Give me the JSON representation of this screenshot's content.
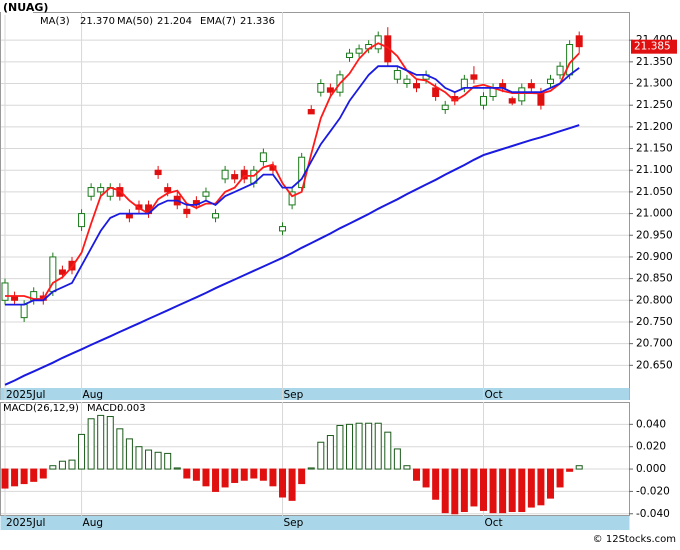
{
  "chart_data": [
    {
      "type": "candlestick",
      "title": "(NUAG)",
      "categories": [
        "2025Jul",
        null,
        null,
        null,
        null,
        null,
        null,
        null,
        "Aug",
        null,
        null,
        null,
        null,
        null,
        null,
        null,
        null,
        null,
        null,
        null,
        null,
        null,
        null,
        null,
        null,
        null,
        null,
        null,
        null,
        "Sep",
        null,
        null,
        null,
        null,
        null,
        null,
        null,
        null,
        null,
        null,
        null,
        null,
        null,
        null,
        null,
        null,
        null,
        null,
        null,
        null,
        "Oct",
        null,
        null,
        null,
        null,
        null,
        null,
        null,
        null,
        null,
        null
      ],
      "open": [
        20.8,
        20.81,
        20.76,
        20.8,
        20.81,
        20.82,
        20.87,
        20.89,
        20.97,
        21.04,
        21.05,
        21.04,
        21.06,
        21.0,
        21.02,
        21.02,
        21.1,
        21.06,
        21.04,
        21.01,
        21.03,
        21.04,
        20.99,
        21.08,
        21.09,
        21.1,
        21.07,
        21.12,
        21.11,
        20.96,
        21.02,
        21.06,
        21.24,
        21.28,
        21.29,
        21.28,
        21.36,
        21.37,
        21.38,
        21.38,
        21.41,
        21.31,
        21.3,
        21.3,
        21.31,
        21.29,
        21.24,
        21.27,
        21.29,
        21.32,
        21.25,
        21.27,
        21.3,
        21.265,
        21.26,
        21.3,
        21.28,
        21.3,
        21.32,
        21.32,
        21.41
      ],
      "high": [
        20.85,
        20.82,
        20.8,
        20.83,
        20.82,
        20.91,
        20.88,
        20.9,
        21.01,
        21.07,
        21.07,
        21.07,
        21.07,
        21.01,
        21.03,
        21.03,
        21.11,
        21.07,
        21.05,
        21.02,
        21.04,
        21.06,
        21.01,
        21.11,
        21.1,
        21.11,
        21.11,
        21.15,
        21.12,
        20.98,
        21.06,
        21.14,
        21.25,
        21.31,
        21.3,
        21.33,
        21.38,
        21.39,
        21.4,
        21.42,
        21.43,
        21.34,
        21.32,
        21.31,
        21.33,
        21.3,
        21.26,
        21.28,
        21.32,
        21.34,
        21.28,
        21.3,
        21.31,
        21.27,
        21.3,
        21.31,
        21.29,
        21.32,
        21.35,
        21.4,
        21.42
      ],
      "low": [
        20.79,
        20.79,
        20.75,
        20.79,
        20.79,
        20.81,
        20.85,
        20.86,
        20.96,
        21.03,
        21.04,
        21.03,
        21.03,
        20.98,
        21.0,
        20.99,
        21.08,
        21.04,
        21.01,
        20.99,
        21.01,
        21.03,
        20.98,
        21.07,
        21.07,
        21.07,
        21.06,
        21.11,
        21.09,
        20.95,
        21.01,
        21.05,
        21.23,
        21.27,
        21.27,
        21.27,
        21.35,
        21.36,
        21.37,
        21.37,
        21.34,
        21.3,
        21.29,
        21.28,
        21.3,
        21.26,
        21.23,
        21.25,
        21.28,
        21.3,
        21.24,
        21.26,
        21.28,
        21.25,
        21.25,
        21.28,
        21.24,
        21.29,
        21.31,
        21.31,
        21.37
      ],
      "close": [
        20.84,
        20.8,
        20.79,
        20.82,
        20.8,
        20.9,
        20.86,
        20.87,
        21.0,
        21.06,
        21.06,
        21.06,
        21.04,
        20.99,
        21.01,
        21.0,
        21.09,
        21.05,
        21.02,
        21.0,
        21.02,
        21.05,
        21.0,
        21.1,
        21.08,
        21.08,
        21.1,
        21.14,
        21.1,
        20.97,
        21.05,
        21.13,
        21.23,
        21.3,
        21.28,
        21.32,
        21.37,
        21.38,
        21.39,
        21.41,
        21.35,
        21.33,
        21.31,
        21.29,
        21.32,
        21.27,
        21.25,
        21.26,
        21.31,
        21.31,
        21.27,
        21.29,
        21.29,
        21.255,
        21.29,
        21.29,
        21.25,
        21.31,
        21.34,
        21.39,
        21.385
      ],
      "up_color": "#1a7a1a",
      "down_color": "#e01010",
      "series": [
        {
          "name": "MA(3)",
          "color": "#ff1a1a",
          "value_label": "21.370",
          "values": [
            20.81,
            20.81,
            20.81,
            20.803,
            20.803,
            20.84,
            20.853,
            20.877,
            20.91,
            20.977,
            21.04,
            21.06,
            21.053,
            21.03,
            21.013,
            21.0,
            21.033,
            21.047,
            21.053,
            21.023,
            21.013,
            21.023,
            21.023,
            21.05,
            21.06,
            21.087,
            21.087,
            21.107,
            21.113,
            21.07,
            21.04,
            21.05,
            21.137,
            21.22,
            21.27,
            21.3,
            21.323,
            21.357,
            21.38,
            21.393,
            21.383,
            21.363,
            21.33,
            21.31,
            21.307,
            21.293,
            21.28,
            21.26,
            21.273,
            21.293,
            21.297,
            21.29,
            21.283,
            21.278,
            21.278,
            21.278,
            21.277,
            21.283,
            21.3,
            21.347,
            21.37
          ]
        },
        {
          "name": "MA(50)",
          "color": "#1a1ae0",
          "value_label": "21.204",
          "values": [
            20.605,
            20.615,
            20.626,
            20.636,
            20.646,
            20.656,
            20.667,
            20.677,
            20.687,
            20.697,
            20.707,
            20.717,
            20.727,
            20.737,
            20.747,
            20.757,
            20.767,
            20.777,
            20.787,
            20.797,
            20.807,
            20.817,
            20.828,
            20.838,
            20.848,
            20.858,
            20.868,
            20.878,
            20.888,
            20.898,
            20.909,
            20.921,
            20.932,
            20.943,
            20.954,
            20.966,
            20.977,
            20.988,
            20.999,
            21.011,
            21.022,
            21.033,
            21.045,
            21.056,
            21.067,
            21.078,
            21.09,
            21.101,
            21.112,
            21.124,
            21.135,
            21.142,
            21.149,
            21.156,
            21.163,
            21.17,
            21.176,
            21.183,
            21.19,
            21.197,
            21.204
          ]
        },
        {
          "name": "EMA(7)",
          "color": "#1a1ae0",
          "value_label": "21.336",
          "values": [
            20.79,
            20.79,
            20.79,
            20.8,
            20.8,
            20.82,
            20.83,
            20.84,
            20.88,
            20.92,
            20.96,
            20.99,
            21.0,
            21.0,
            21.0,
            21.0,
            21.02,
            21.03,
            21.03,
            21.02,
            21.02,
            21.03,
            21.02,
            21.04,
            21.05,
            21.06,
            21.07,
            21.09,
            21.09,
            21.06,
            21.06,
            21.08,
            21.12,
            21.16,
            21.19,
            21.22,
            21.26,
            21.29,
            21.32,
            21.34,
            21.34,
            21.34,
            21.33,
            21.32,
            21.32,
            21.31,
            21.29,
            21.28,
            21.29,
            21.29,
            21.29,
            21.29,
            21.29,
            21.28,
            21.28,
            21.28,
            21.28,
            21.29,
            21.3,
            21.32,
            21.336
          ]
        }
      ],
      "ylim": [
        20.57,
        21.465
      ],
      "yticks": [
        {
          "value": 21.4,
          "label": "21.400"
        },
        {
          "value": 21.35,
          "label": "21.350"
        },
        {
          "value": 21.3,
          "label": "21.300"
        },
        {
          "value": 21.25,
          "label": "21.250"
        },
        {
          "value": 21.2,
          "label": "21.200"
        },
        {
          "value": 21.15,
          "label": "21.150"
        },
        {
          "value": 21.1,
          "label": "21.100"
        },
        {
          "value": 21.05,
          "label": "21.050"
        },
        {
          "value": 21.0,
          "label": "21.000"
        },
        {
          "value": 20.95,
          "label": "20.950"
        },
        {
          "value": 20.9,
          "label": "20.900"
        },
        {
          "value": 20.85,
          "label": "20.850"
        },
        {
          "value": 20.8,
          "label": "20.800"
        },
        {
          "value": 20.75,
          "label": "20.750"
        },
        {
          "value": 20.7,
          "label": "20.700"
        },
        {
          "value": 20.65,
          "label": "20.650"
        }
      ],
      "grid": true
    },
    {
      "type": "histogram",
      "title": "MACD(26,12,9)",
      "series_name": "MACD:",
      "categories": [
        "2025Jul",
        null,
        null,
        null,
        null,
        null,
        null,
        null,
        "Aug",
        null,
        null,
        null,
        null,
        null,
        null,
        null,
        null,
        null,
        null,
        null,
        null,
        null,
        null,
        null,
        null,
        null,
        null,
        null,
        null,
        "Sep",
        null,
        null,
        null,
        null,
        null,
        null,
        null,
        null,
        null,
        null,
        null,
        null,
        null,
        null,
        null,
        null,
        null,
        null,
        null,
        null,
        "Oct",
        null,
        null,
        null,
        null,
        null,
        null,
        null,
        null,
        null,
        null
      ],
      "values": [
        -0.017,
        -0.015,
        -0.013,
        -0.011,
        -0.008,
        0.003,
        0.007,
        0.008,
        0.031,
        0.045,
        0.048,
        0.047,
        0.036,
        0.027,
        0.02,
        0.017,
        0.015,
        0.014,
        0.001,
        -0.008,
        -0.01,
        -0.015,
        -0.02,
        -0.016,
        -0.012,
        -0.01,
        -0.008,
        -0.01,
        -0.015,
        -0.025,
        -0.028,
        -0.013,
        0.001,
        0.024,
        0.03,
        0.039,
        0.04,
        0.041,
        0.041,
        0.041,
        0.033,
        0.018,
        0.003,
        -0.01,
        -0.016,
        -0.027,
        -0.039,
        -0.04,
        -0.038,
        -0.033,
        -0.037,
        -0.039,
        -0.039,
        -0.038,
        -0.038,
        -0.034,
        -0.032,
        -0.026,
        -0.016,
        -0.002,
        0.003
      ],
      "up_color": "#1a5a1a",
      "down_color": "#e01010",
      "ylim": [
        -0.042,
        0.06
      ],
      "yticks": [
        {
          "value": 0.04,
          "label": "0.040"
        },
        {
          "value": 0.02,
          "label": "0.020"
        },
        {
          "value": 0,
          "label": "0.000"
        },
        {
          "value": -0.02,
          "label": "-0.020"
        },
        {
          "value": -0.04,
          "label": "-0.040"
        }
      ],
      "grid": true
    }
  ],
  "footer": "© 12Stocks.com"
}
